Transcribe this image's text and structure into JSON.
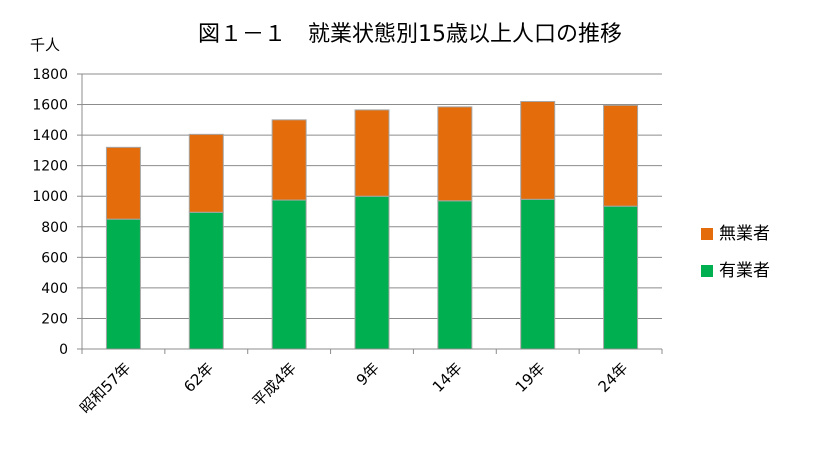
{
  "chart_data": {
    "type": "bar",
    "stacked": true,
    "title": "図１－１　就業状態別15歳以上人口の推移",
    "ylabel": "千人",
    "xlabel": "",
    "categories": [
      "昭和57年",
      "62年",
      "平成4年",
      "9年",
      "14年",
      "19年",
      "24年"
    ],
    "series": [
      {
        "name": "有業者",
        "color": "#00B050",
        "values": [
          850,
          895,
          975,
          1000,
          970,
          980,
          935
        ]
      },
      {
        "name": "無業者",
        "color": "#E46C0A",
        "values": [
          470,
          510,
          525,
          565,
          615,
          640,
          660
        ]
      }
    ],
    "ylim": [
      0,
      1800
    ],
    "yticks": [
      0,
      200,
      400,
      600,
      800,
      1000,
      1200,
      1400,
      1600,
      1800
    ],
    "grid": true,
    "legend_position": "right"
  }
}
